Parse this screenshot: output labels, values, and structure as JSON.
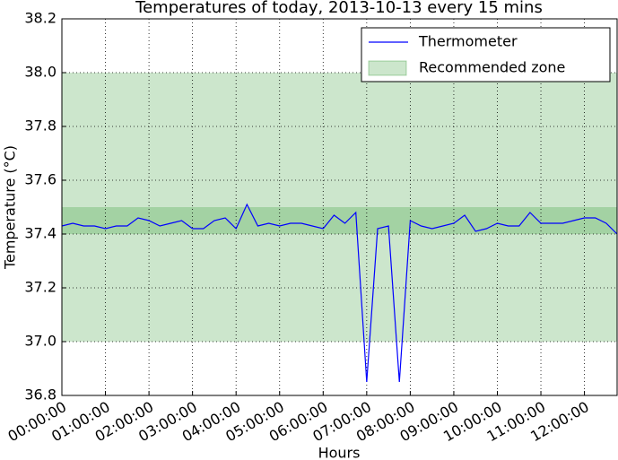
{
  "chart_data": {
    "type": "line",
    "title": "Temperatures of today, 2013-10-13 every 15 mins",
    "xlabel": "Hours",
    "ylabel": "Temperature (°C)",
    "x": [
      0,
      0.25,
      0.5,
      0.75,
      1,
      1.25,
      1.5,
      1.75,
      2,
      2.25,
      2.5,
      2.75,
      3,
      3.25,
      3.5,
      3.75,
      4,
      4.25,
      4.5,
      4.75,
      5,
      5.25,
      5.5,
      5.75,
      6,
      6.25,
      6.5,
      6.75,
      7,
      7.25,
      7.5,
      7.75,
      8,
      8.25,
      8.5,
      8.75,
      9,
      9.25,
      9.5,
      9.75,
      10,
      10.25,
      10.5,
      10.75,
      11,
      11.25,
      11.5,
      11.75,
      12,
      12.25,
      12.5,
      12.75
    ],
    "series": [
      {
        "name": "Thermometer",
        "color": "#0000ff",
        "values": [
          37.43,
          37.44,
          37.43,
          37.43,
          37.42,
          37.43,
          37.43,
          37.46,
          37.45,
          37.43,
          37.44,
          37.45,
          37.42,
          37.42,
          37.45,
          37.46,
          37.42,
          37.51,
          37.43,
          37.44,
          37.43,
          37.44,
          37.44,
          37.43,
          37.42,
          37.47,
          37.44,
          37.48,
          36.85,
          37.42,
          37.43,
          36.85,
          37.45,
          37.43,
          37.42,
          37.43,
          37.44,
          37.47,
          37.41,
          37.42,
          37.44,
          37.43,
          37.43,
          37.48,
          37.44,
          37.44,
          37.44,
          37.45,
          37.46,
          37.46,
          37.44,
          37.4
        ]
      }
    ],
    "zone": {
      "name": "Recommended zone",
      "color": "#008000",
      "bands": [
        [
          37.0,
          38.0
        ],
        [
          37.4,
          37.5
        ]
      ]
    },
    "xlim": [
      0,
      12.75
    ],
    "xticks": [
      {
        "value": 0,
        "label": "00:00:00"
      },
      {
        "value": 1,
        "label": "01:00:00"
      },
      {
        "value": 2,
        "label": "02:00:00"
      },
      {
        "value": 3,
        "label": "03:00:00"
      },
      {
        "value": 4,
        "label": "04:00:00"
      },
      {
        "value": 5,
        "label": "05:00:00"
      },
      {
        "value": 6,
        "label": "06:00:00"
      },
      {
        "value": 7,
        "label": "07:00:00"
      },
      {
        "value": 8,
        "label": "08:00:00"
      },
      {
        "value": 9,
        "label": "09:00:00"
      },
      {
        "value": 10,
        "label": "10:00:00"
      },
      {
        "value": 11,
        "label": "11:00:00"
      },
      {
        "value": 12,
        "label": "12:00:00"
      }
    ],
    "ylim": [
      36.8,
      38.2
    ],
    "yticks": [
      36.8,
      {
        "value": 37,
        "label": "37.0"
      },
      37.2,
      37.4,
      37.6,
      37.8,
      {
        "value": 38,
        "label": "38.0"
      },
      38.2
    ],
    "grid": true,
    "legend": "upper right"
  }
}
